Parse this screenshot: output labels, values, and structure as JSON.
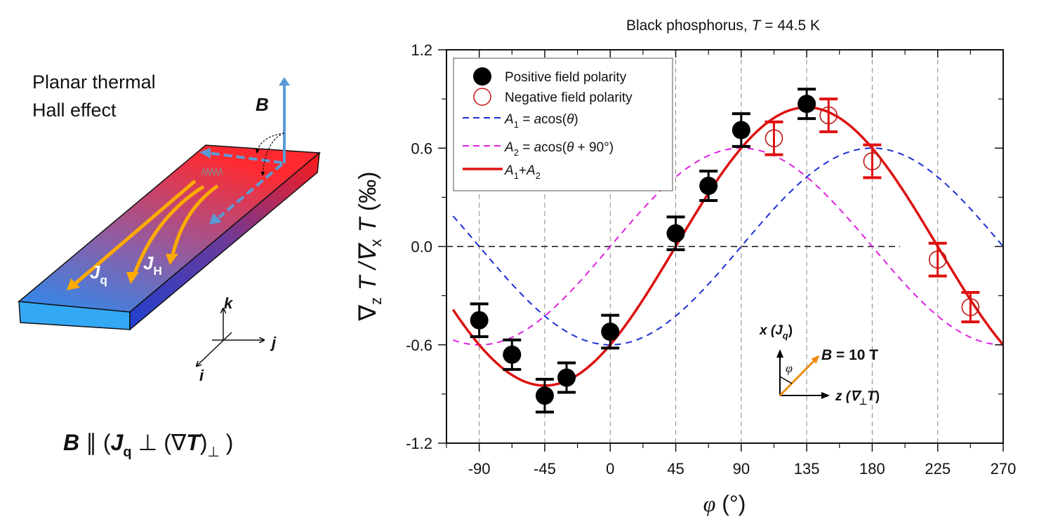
{
  "left_panel": {
    "title_line1": "Planar thermal",
    "title_line2": "Hall effect",
    "b_label": "B",
    "jq_label": "J",
    "jq_sub": "q",
    "jh_label": "J",
    "jh_sub": "H",
    "axis_k": "k",
    "axis_j": "j",
    "axis_i": "i",
    "formula": {
      "b": "B",
      "parallel": " ∥ (",
      "j": "J",
      "j_sub": "q",
      "perp": " ⊥ (∇",
      "t": "T",
      "close": ")",
      "perp_sub": "⊥",
      "end": " )"
    },
    "colors": {
      "hot": "#ff2a2a",
      "cold": "#1e90ff",
      "field_arrow": "#5b9bd5",
      "current": "#ffaa00"
    }
  },
  "chart_data": {
    "type": "scatter",
    "title": "Black phosphorus, ",
    "title_T": "T",
    "title_value": " = 44.5 K",
    "xlabel": "φ",
    "xlabel_unit": " (°)",
    "ylabel_parts": [
      "∇",
      "z",
      " T /∇",
      "x",
      " T",
      " (‰)"
    ],
    "xlim": [
      -112.5,
      270
    ],
    "ylim": [
      -1.2,
      1.2
    ],
    "xticks": [
      -90,
      -45,
      0,
      45,
      90,
      135,
      180,
      225,
      270
    ],
    "xtick_labels": [
      "-90",
      "-45",
      "0",
      "45",
      "90",
      "135",
      "180",
      "225",
      "270"
    ],
    "yticks": [
      -1.2,
      -0.6,
      0.0,
      0.6,
      1.2
    ],
    "ytick_labels": [
      "-1.2",
      "-0.6",
      "0.0",
      "0.6",
      "1.2"
    ],
    "grid": "vertical dashed at major x ticks",
    "zero_line": true,
    "legend_position": "top-left",
    "series": [
      {
        "name": "Positive field polarity",
        "kind": "points",
        "marker": "filled-circle",
        "color": "#000000",
        "x": [
          -90,
          -67.5,
          -45,
          -30,
          0,
          45,
          67.5,
          90,
          135
        ],
        "y": [
          -0.45,
          -0.66,
          -0.91,
          -0.8,
          -0.52,
          0.08,
          0.37,
          0.71,
          0.87
        ],
        "err": [
          0.1,
          0.09,
          0.1,
          0.09,
          0.1,
          0.1,
          0.09,
          0.1,
          0.09
        ]
      },
      {
        "name": "Negative field polarity",
        "kind": "points",
        "marker": "open-circle",
        "color": "#cc1111",
        "x": [
          112.5,
          150,
          180,
          225,
          247.5
        ],
        "y": [
          0.66,
          0.8,
          0.52,
          -0.08,
          -0.37
        ],
        "err": [
          0.1,
          0.1,
          0.1,
          0.1,
          0.09
        ]
      },
      {
        "name": "A1 = acos(θ)",
        "legend_parts": [
          "A",
          "1",
          " = ",
          "a",
          "cos(",
          "θ",
          ")"
        ],
        "kind": "line",
        "style": "dashed",
        "color": "#1a2fd6",
        "function": "-0.6*cos(phi)",
        "amplitude": 0.6
      },
      {
        "name": "A2 = acos(θ + 90°)",
        "legend_parts": [
          "A",
          "2",
          " = ",
          "a",
          "cos(",
          "θ",
          " + 90°)"
        ],
        "kind": "line",
        "style": "dashed",
        "color": "#e020e0",
        "function": "0.6*sin(phi)",
        "amplitude": 0.6
      },
      {
        "name": "A1+A2",
        "legend_parts": [
          "A",
          "1",
          "+",
          "A",
          "2"
        ],
        "kind": "line",
        "style": "solid",
        "color": "#dd1111",
        "function": "0.6*sin(phi) - 0.6*cos(phi)",
        "amplitude": 0.85
      }
    ],
    "inset": {
      "x_axis_label": "x (",
      "x_axis_J": "J",
      "x_axis_sub": "q",
      "x_axis_close": ")",
      "z_axis_label": "z (∇",
      "z_axis_sub": "⊥",
      "z_axis_T": "T",
      "z_axis_close": ")",
      "angle_label": "φ",
      "field_label": "B",
      "field_value": " = 10 T",
      "field_color": "#f08a10"
    }
  }
}
